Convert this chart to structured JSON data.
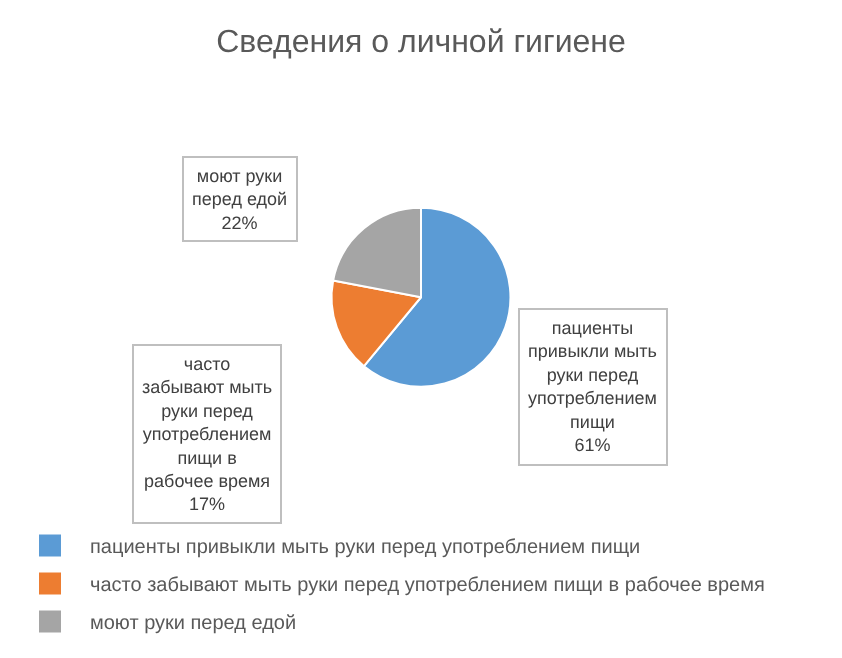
{
  "chart_data": {
    "type": "pie",
    "title": "Сведения о личной гигиене",
    "categories": [
      "пациенты привыкли мыть руки перед употреблением пищи",
      "часто забывают мыть руки перед употреблением пищи в рабочее время",
      "моют руки перед едой"
    ],
    "values": [
      61,
      17,
      22
    ],
    "value_labels": [
      "61%",
      "17%",
      "22%"
    ],
    "colors": [
      "#5b9bd5",
      "#ed7d31",
      "#a5a5a5"
    ],
    "legend": "bottom"
  }
}
